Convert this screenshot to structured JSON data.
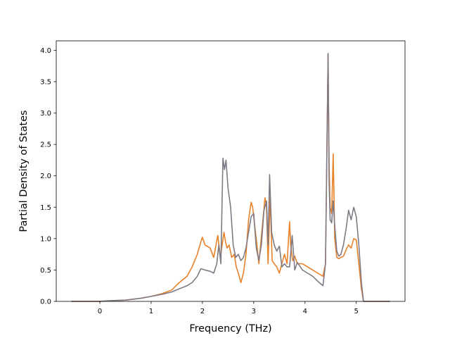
{
  "chart_data": {
    "type": "line",
    "title": "",
    "xlabel": "Frequency (THz)",
    "ylabel": "Partial Density of States",
    "xlim": [
      -0.85,
      5.95
    ],
    "ylim": [
      0.0,
      4.15
    ],
    "xticks": [
      0,
      1,
      2,
      3,
      4,
      5
    ],
    "yticks": [
      0.0,
      0.5,
      1.0,
      1.5,
      2.0,
      2.5,
      3.0,
      3.5,
      4.0
    ],
    "xtick_labels": [
      "0",
      "1",
      "2",
      "3",
      "4",
      "5"
    ],
    "ytick_labels": [
      "0.0",
      "0.5",
      "1.0",
      "1.5",
      "2.0",
      "2.5",
      "3.0",
      "3.5",
      "4.0"
    ],
    "grid": false,
    "legend": false,
    "series": [
      {
        "color": "#e8812a",
        "x": [
          -0.55,
          0.0,
          0.2,
          0.5,
          0.8,
          1.0,
          1.2,
          1.4,
          1.55,
          1.7,
          1.8,
          1.9,
          1.97,
          2.0,
          2.05,
          2.15,
          2.22,
          2.3,
          2.35,
          2.42,
          2.45,
          2.48,
          2.52,
          2.57,
          2.62,
          2.66,
          2.7,
          2.75,
          2.8,
          2.85,
          2.9,
          2.95,
          2.98,
          3.02,
          3.05,
          3.1,
          3.14,
          3.18,
          3.22,
          3.25,
          3.28,
          3.32,
          3.36,
          3.4,
          3.45,
          3.5,
          3.55,
          3.6,
          3.65,
          3.7,
          3.72,
          3.76,
          3.8,
          3.85,
          3.95,
          4.05,
          4.15,
          4.25,
          4.35,
          4.4,
          4.45,
          4.47,
          4.49,
          4.52,
          4.55,
          4.58,
          4.62,
          4.66,
          4.7,
          4.75,
          4.8,
          4.85,
          4.9,
          4.95,
          5.0,
          5.05,
          5.1,
          5.14,
          5.2,
          5.5,
          5.65
        ],
        "y": [
          0.0,
          0.0,
          0.01,
          0.02,
          0.05,
          0.08,
          0.12,
          0.18,
          0.3,
          0.4,
          0.55,
          0.75,
          0.95,
          1.02,
          0.9,
          0.85,
          0.7,
          1.05,
          0.7,
          1.1,
          0.95,
          0.85,
          0.9,
          0.7,
          0.75,
          0.55,
          0.45,
          0.3,
          0.45,
          0.75,
          1.3,
          1.58,
          1.5,
          1.2,
          1.0,
          0.6,
          0.95,
          1.3,
          1.65,
          1.5,
          0.6,
          1.65,
          0.65,
          0.6,
          0.55,
          0.45,
          0.6,
          0.75,
          0.6,
          1.27,
          0.9,
          0.65,
          0.72,
          0.6,
          0.6,
          0.55,
          0.5,
          0.45,
          0.4,
          0.6,
          3.93,
          2.2,
          1.5,
          1.4,
          2.35,
          1.0,
          0.7,
          0.68,
          0.7,
          0.72,
          0.82,
          0.9,
          0.85,
          1.0,
          0.98,
          0.6,
          0.2,
          0.0,
          0.0,
          0.0,
          0.0
        ]
      },
      {
        "color": "#7f7a86",
        "x": [
          -0.55,
          0.0,
          0.2,
          0.5,
          0.8,
          1.0,
          1.2,
          1.4,
          1.55,
          1.7,
          1.8,
          1.9,
          1.97,
          2.05,
          2.15,
          2.22,
          2.28,
          2.32,
          2.36,
          2.4,
          2.43,
          2.46,
          2.5,
          2.55,
          2.6,
          2.65,
          2.7,
          2.75,
          2.8,
          2.85,
          2.9,
          2.95,
          3.0,
          3.05,
          3.1,
          3.15,
          3.2,
          3.25,
          3.28,
          3.31,
          3.35,
          3.4,
          3.45,
          3.5,
          3.55,
          3.6,
          3.65,
          3.7,
          3.75,
          3.8,
          3.85,
          3.95,
          4.05,
          4.15,
          4.25,
          4.35,
          4.4,
          4.45,
          4.47,
          4.49,
          4.52,
          4.55,
          4.58,
          4.62,
          4.66,
          4.7,
          4.75,
          4.8,
          4.85,
          4.9,
          4.95,
          5.0,
          5.05,
          5.1,
          5.14,
          5.2,
          5.5,
          5.65
        ],
        "y": [
          0.0,
          0.0,
          0.01,
          0.02,
          0.05,
          0.08,
          0.11,
          0.15,
          0.2,
          0.25,
          0.3,
          0.4,
          0.52,
          0.5,
          0.48,
          0.45,
          0.6,
          0.9,
          0.6,
          2.28,
          2.1,
          2.25,
          1.8,
          1.5,
          0.9,
          0.7,
          0.75,
          0.65,
          0.7,
          0.85,
          1.1,
          1.35,
          1.4,
          0.85,
          0.65,
          0.9,
          1.45,
          1.6,
          0.9,
          2.02,
          1.1,
          0.9,
          0.8,
          0.88,
          0.55,
          0.6,
          0.55,
          0.55,
          1.05,
          0.5,
          0.62,
          0.5,
          0.45,
          0.4,
          0.32,
          0.25,
          0.6,
          3.95,
          1.9,
          1.3,
          1.25,
          1.6,
          1.2,
          0.8,
          0.72,
          0.75,
          0.9,
          1.15,
          1.45,
          1.3,
          1.5,
          1.35,
          0.9,
          0.3,
          0.0,
          0.0,
          0.0,
          0.0
        ]
      }
    ]
  }
}
